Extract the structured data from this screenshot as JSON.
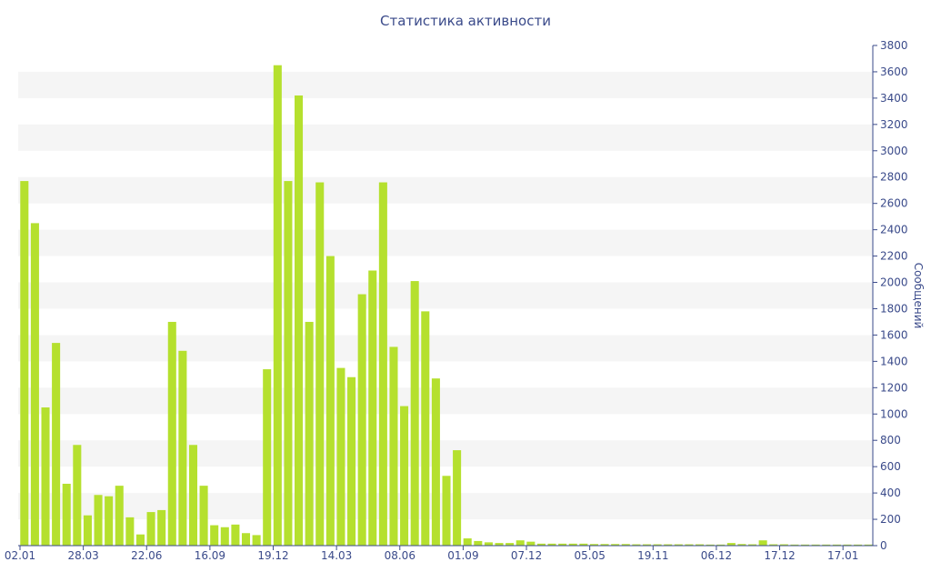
{
  "chart_data": {
    "type": "bar",
    "title": "Статистика активности",
    "xlabel": "",
    "ylabel": "Сообщений",
    "ylim": [
      0,
      3800
    ],
    "ytick_step": 200,
    "grid": "horizontal alternating bands",
    "bar_color": "#b5e02e",
    "axis_color": "#3a4a8a",
    "band_color": "#f5f5f5",
    "x_tick_labels": [
      "02.01",
      "28.03",
      "22.06",
      "16.09",
      "19.12",
      "14.03",
      "08.06",
      "01.09",
      "07.12",
      "05.05",
      "19.11",
      "06.12",
      "17.12",
      "17.01"
    ],
    "x_tick_positions": [
      0,
      6,
      12,
      18,
      24,
      30,
      36,
      42,
      48,
      54,
      60,
      66,
      72,
      78
    ],
    "values": [
      2770,
      2450,
      1050,
      1540,
      470,
      765,
      230,
      385,
      375,
      455,
      215,
      85,
      255,
      270,
      1700,
      1480,
      765,
      455,
      155,
      140,
      160,
      95,
      80,
      1340,
      3650,
      2770,
      3420,
      1700,
      2760,
      2200,
      1350,
      1280,
      1910,
      2090,
      2760,
      1510,
      1060,
      2010,
      1780,
      1270,
      530,
      725,
      55,
      35,
      25,
      20,
      20,
      40,
      30,
      15,
      15,
      15,
      15,
      15,
      12,
      12,
      12,
      12,
      10,
      10,
      10,
      10,
      10,
      10,
      10,
      8,
      8,
      20,
      12,
      10,
      40,
      10,
      10,
      8,
      8,
      8,
      8,
      8,
      8,
      8,
      8
    ]
  }
}
